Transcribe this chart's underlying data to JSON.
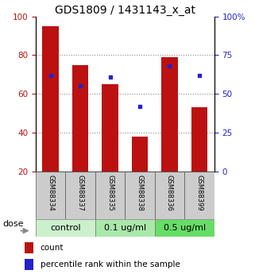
{
  "title": "GDS1809 / 1431143_x_at",
  "categories": [
    "GSM88334",
    "GSM88337",
    "GSM88335",
    "GSM88338",
    "GSM88336",
    "GSM88399"
  ],
  "red_values": [
    95,
    75,
    65,
    38,
    79,
    53
  ],
  "blue_pct": [
    62,
    55,
    61,
    42,
    68,
    62
  ],
  "groups": [
    {
      "label": "control",
      "indices": [
        0,
        1
      ],
      "color": "#ccf0cc"
    },
    {
      "label": "0.1 ug/ml",
      "indices": [
        2,
        3
      ],
      "color": "#aae8aa"
    },
    {
      "label": "0.5 ug/ml",
      "indices": [
        4,
        5
      ],
      "color": "#66dd66"
    }
  ],
  "ylim_left": [
    20,
    100
  ],
  "ylim_right": [
    0,
    100
  ],
  "yticks_left": [
    20,
    40,
    60,
    80,
    100
  ],
  "ytick_labels_left": [
    "20",
    "40",
    "60",
    "80",
    "100"
  ],
  "yticks_right": [
    0,
    25,
    50,
    75,
    100
  ],
  "ytick_labels_right": [
    "0",
    "25",
    "50",
    "75",
    "100%"
  ],
  "bar_color": "#bb1111",
  "dot_color": "#2222cc",
  "bar_width": 0.55,
  "grid_yticks": [
    40,
    60,
    80
  ],
  "grid_color": "#888888",
  "dose_label": "dose",
  "legend_count": "count",
  "legend_pct": "percentile rank within the sample",
  "title_fontsize": 10,
  "tick_fontsize": 7.5,
  "cat_fontsize": 6,
  "grp_fontsize": 8,
  "leg_fontsize": 7.5
}
